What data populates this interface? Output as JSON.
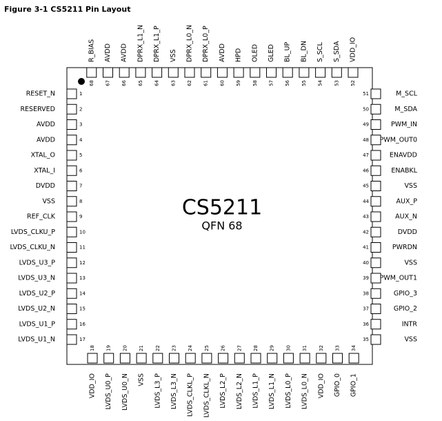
{
  "title": "Figure 3-1  CS5211 Pin Layout",
  "chip": {
    "name": "CS5211",
    "package": "QFN 68"
  },
  "pins": {
    "left": [
      {
        "number": 1,
        "name": "RESET_N"
      },
      {
        "number": 2,
        "name": "RESERVED"
      },
      {
        "number": 3,
        "name": "AVDD"
      },
      {
        "number": 4,
        "name": "AVDD"
      },
      {
        "number": 5,
        "name": "XTAL_O"
      },
      {
        "number": 6,
        "name": "XTAL_I"
      },
      {
        "number": 7,
        "name": "DVDD"
      },
      {
        "number": 8,
        "name": "VSS"
      },
      {
        "number": 9,
        "name": "REF_CLK"
      },
      {
        "number": 10,
        "name": "LVDS_CLKU_P"
      },
      {
        "number": 11,
        "name": "LVDS_CLKU_N"
      },
      {
        "number": 12,
        "name": "LVDS_U3_P"
      },
      {
        "number": 13,
        "name": "LVDS_U3_N"
      },
      {
        "number": 14,
        "name": "LVDS_U2_P"
      },
      {
        "number": 15,
        "name": "LVDS_U2_N"
      },
      {
        "number": 16,
        "name": "LVDS_U1_P"
      },
      {
        "number": 17,
        "name": "LVDS_U1_N"
      }
    ],
    "bottom": [
      {
        "number": 18,
        "name": "VDD_IO"
      },
      {
        "number": 19,
        "name": "LVDS_U0_P"
      },
      {
        "number": 20,
        "name": "LVDS_U0_N"
      },
      {
        "number": 21,
        "name": "VSS"
      },
      {
        "number": 22,
        "name": "LVDS_L3_P"
      },
      {
        "number": 23,
        "name": "LVDS_L3_N"
      },
      {
        "number": 24,
        "name": "LVDS_CLKL_P"
      },
      {
        "number": 25,
        "name": "LVDS_CLKL_N"
      },
      {
        "number": 26,
        "name": "LVDS_L2_P"
      },
      {
        "number": 27,
        "name": "LVDS_L2_N"
      },
      {
        "number": 28,
        "name": "LVDS_L1_P"
      },
      {
        "number": 29,
        "name": "LVDS_L1_N"
      },
      {
        "number": 30,
        "name": "LVDS_L0_P"
      },
      {
        "number": 31,
        "name": "LVDS_L0_N"
      },
      {
        "number": 32,
        "name": "VDD_IO"
      },
      {
        "number": 33,
        "name": "GPIO_0"
      },
      {
        "number": 34,
        "name": "GPIO_1"
      }
    ],
    "right": [
      {
        "number": 35,
        "name": "VSS"
      },
      {
        "number": 36,
        "name": "INTR"
      },
      {
        "number": 37,
        "name": "GPIO_2"
      },
      {
        "number": 38,
        "name": "GPIO_3"
      },
      {
        "number": 39,
        "name": "PWM_OUT1"
      },
      {
        "number": 40,
        "name": "VSS"
      },
      {
        "number": 41,
        "name": "PWRDN"
      },
      {
        "number": 42,
        "name": "DVDD"
      },
      {
        "number": 43,
        "name": "AUX_N"
      },
      {
        "number": 44,
        "name": "AUX_P"
      },
      {
        "number": 45,
        "name": "VSS"
      },
      {
        "number": 46,
        "name": "ENABKL"
      },
      {
        "number": 47,
        "name": "ENAVDD"
      },
      {
        "number": 48,
        "name": "PWM_OUT0"
      },
      {
        "number": 49,
        "name": "PWM_IN"
      },
      {
        "number": 50,
        "name": "M_SDA"
      },
      {
        "number": 51,
        "name": "M_SCL"
      }
    ],
    "top": [
      {
        "number": 52,
        "name": "VDD_IO"
      },
      {
        "number": 53,
        "name": "S_SDA"
      },
      {
        "number": 54,
        "name": "S_SCL"
      },
      {
        "number": 55,
        "name": "BL_DN"
      },
      {
        "number": 56,
        "name": "BL_UP"
      },
      {
        "number": 57,
        "name": "GLED"
      },
      {
        "number": 58,
        "name": "OLED"
      },
      {
        "number": 59,
        "name": "HPD"
      },
      {
        "number": 60,
        "name": "AVDD"
      },
      {
        "number": 61,
        "name": "DPRX_L0_P"
      },
      {
        "number": 62,
        "name": "DPRX_L0_N"
      },
      {
        "number": 63,
        "name": "VSS"
      },
      {
        "number": 64,
        "name": "DPRX_L1_P"
      },
      {
        "number": 65,
        "name": "DPRX_L1_N"
      },
      {
        "number": 66,
        "name": "AVDD"
      },
      {
        "number": 67,
        "name": "AVDD"
      },
      {
        "number": 68,
        "name": "R_BIAS"
      }
    ]
  }
}
